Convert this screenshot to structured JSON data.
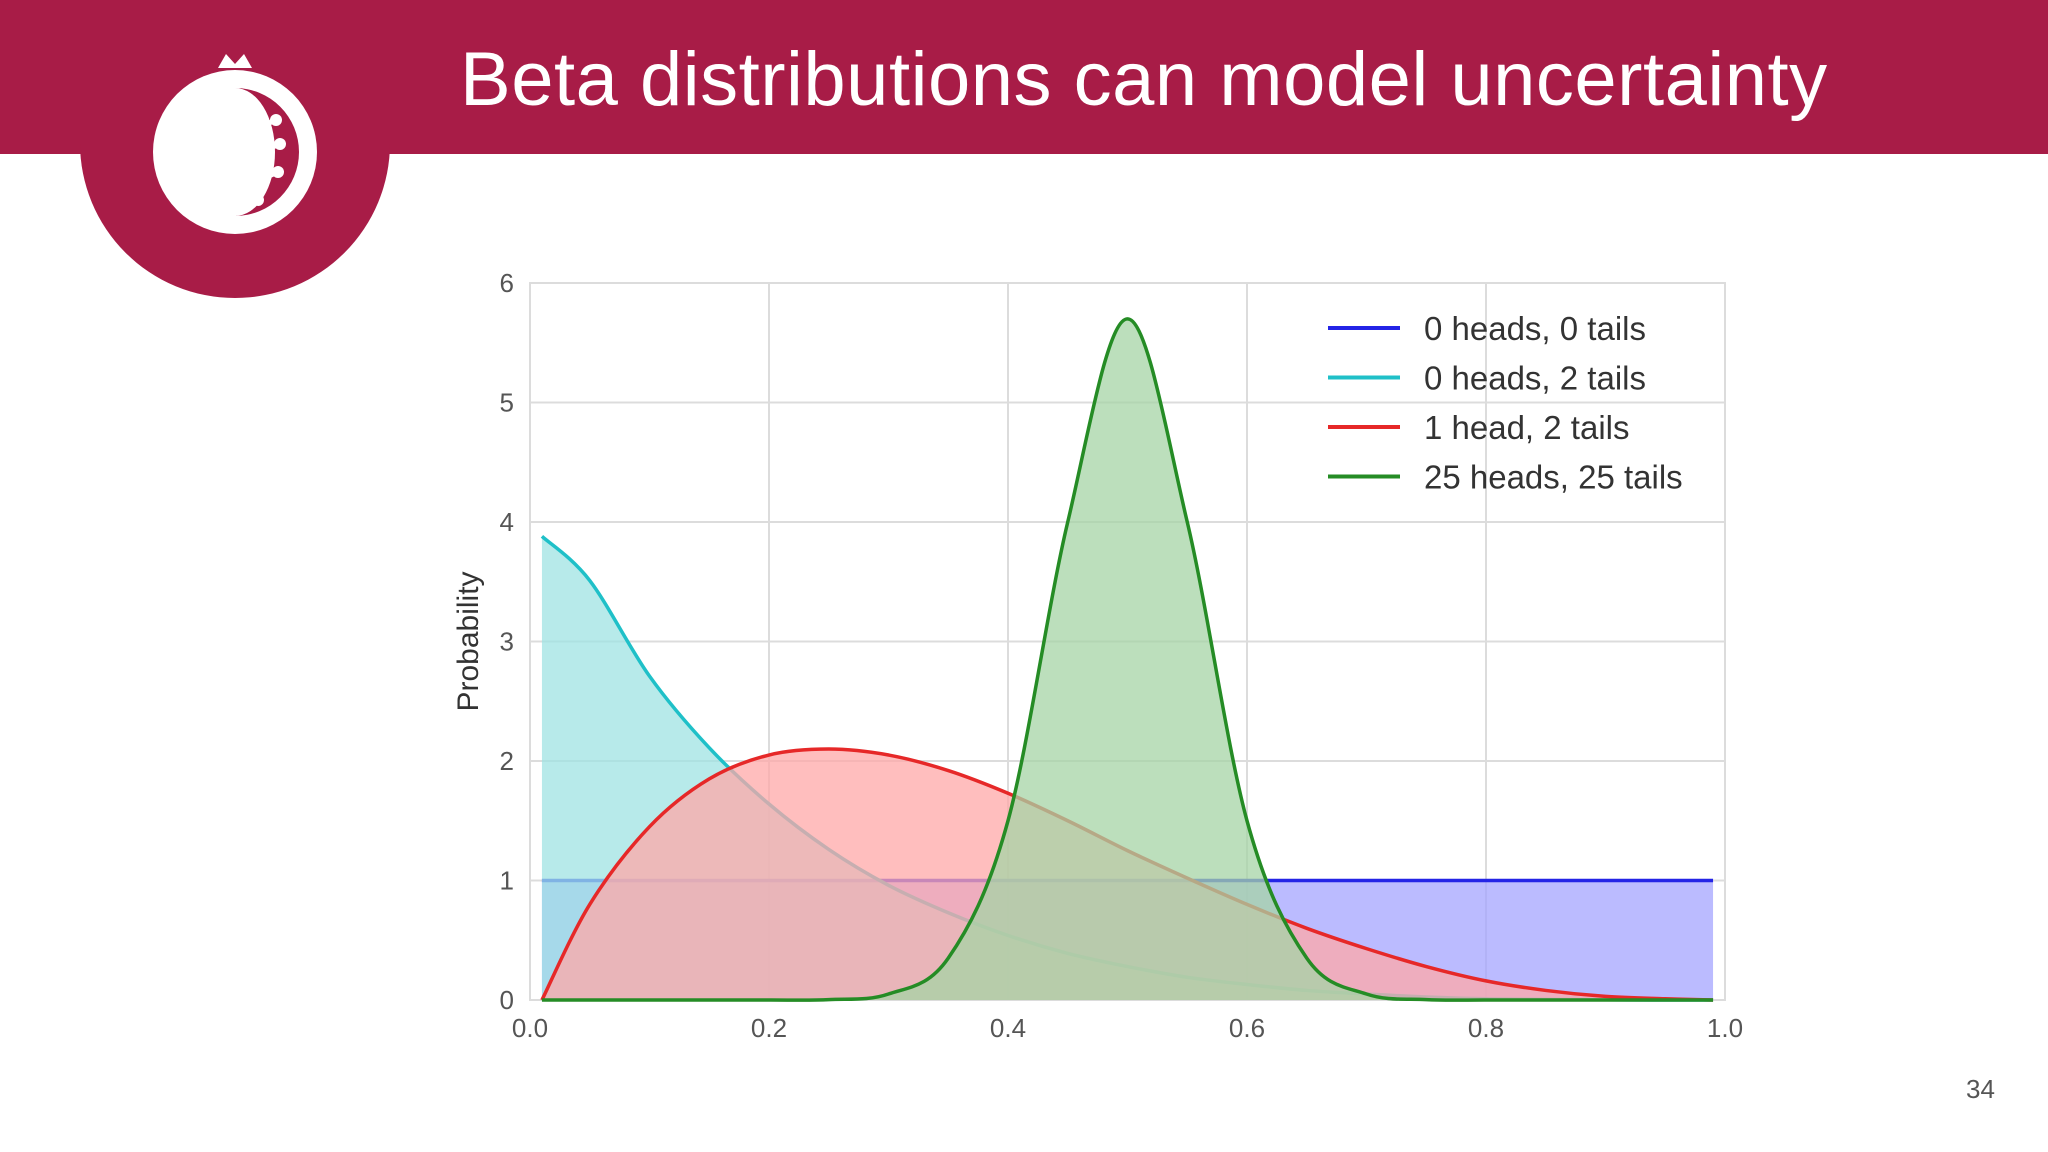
{
  "slide": {
    "title": "Beta distributions can model uncertainty",
    "page_number": "34"
  },
  "logo": {
    "icon": "pomegranate-network-icon",
    "color": "#a81c47"
  },
  "chart_data": {
    "type": "area",
    "title": "",
    "xlabel": "",
    "ylabel": "Probability",
    "xlim": [
      0.0,
      1.0
    ],
    "ylim": [
      0,
      6
    ],
    "xticks": [
      "0.0",
      "0.2",
      "0.4",
      "0.6",
      "0.8",
      "1.0"
    ],
    "yticks": [
      "0",
      "1",
      "2",
      "3",
      "4",
      "5",
      "6"
    ],
    "grid": true,
    "legend_position": "top-right",
    "x": [
      0.01,
      0.05,
      0.1,
      0.15,
      0.2,
      0.25,
      0.3,
      0.35,
      0.4,
      0.45,
      0.5,
      0.55,
      0.6,
      0.65,
      0.7,
      0.75,
      0.8,
      0.85,
      0.9,
      0.95,
      0.99
    ],
    "series": [
      {
        "name": "0 heads, 0 tails",
        "color": "#2424e6",
        "fill": "#a4a4ff",
        "values": [
          1,
          1,
          1,
          1,
          1,
          1,
          1,
          1,
          1,
          1,
          1,
          1,
          1,
          1,
          1,
          1,
          1,
          1,
          1,
          1,
          1
        ]
      },
      {
        "name": "0 heads, 2 tails",
        "color": "#1fc0c8",
        "fill": "#9fe3e3",
        "values": [
          3.88,
          3.51,
          2.71,
          2.11,
          1.64,
          1.26,
          0.96,
          0.73,
          0.54,
          0.39,
          0.28,
          0.19,
          0.13,
          0.08,
          0.05,
          0.025,
          0.01,
          0.005,
          0.002,
          0,
          0
        ]
      },
      {
        "name": "1 head, 2 tails",
        "color": "#e62828",
        "fill": "#ffa8a8",
        "values": [
          0.0,
          0.8,
          1.45,
          1.85,
          2.05,
          2.1,
          2.05,
          1.92,
          1.73,
          1.5,
          1.25,
          1.02,
          0.8,
          0.6,
          0.43,
          0.28,
          0.16,
          0.08,
          0.03,
          0.01,
          0.0
        ]
      },
      {
        "name": "25 heads, 25 tails",
        "color": "#258c25",
        "fill": "#a6d4a6",
        "values": [
          0,
          0,
          0,
          0,
          0,
          0.003,
          0.05,
          0.35,
          1.5,
          4.0,
          5.7,
          4.0,
          1.5,
          0.35,
          0.05,
          0.003,
          0,
          0,
          0,
          0,
          0
        ]
      }
    ]
  }
}
